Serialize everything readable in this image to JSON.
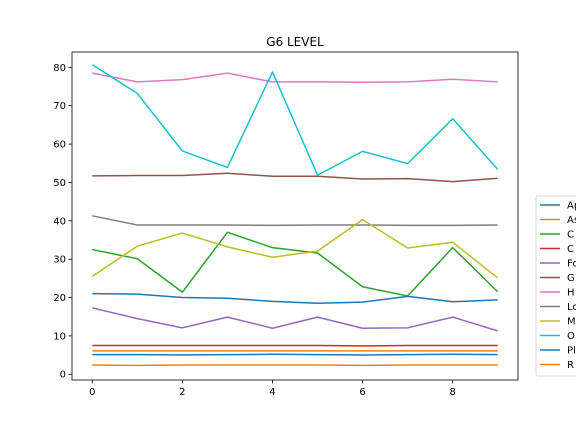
{
  "chart_data": {
    "type": "line",
    "title": "G6 LEVEL",
    "xlabel": "",
    "ylabel": "",
    "xlim": [
      -0.45,
      9.45
    ],
    "ylim": [
      -1.5,
      84
    ],
    "xticks": [
      0,
      2,
      4,
      6,
      8
    ],
    "yticks": [
      0,
      10,
      20,
      30,
      40,
      50,
      60,
      70,
      80
    ],
    "grid": false,
    "legend_position": "right",
    "x": [
      0,
      1,
      2,
      3,
      4,
      5,
      6,
      7,
      8,
      9
    ],
    "series": [
      {
        "name": "Ap",
        "color": "#1f77b4",
        "values": [
          21.0,
          20.9,
          20.0,
          19.8,
          19.0,
          18.5,
          18.8,
          20.3,
          18.9,
          19.4
        ]
      },
      {
        "name": "As",
        "color": "#ff7f0e",
        "values": [
          2.4,
          2.3,
          2.4,
          2.4,
          2.4,
          2.4,
          2.3,
          2.4,
          2.4,
          2.4
        ]
      },
      {
        "name": "C",
        "color": "#2ca02c",
        "values": [
          32.5,
          30.1,
          21.4,
          37.0,
          33.0,
          31.6,
          22.8,
          20.4,
          33.0,
          21.5
        ]
      },
      {
        "name": "C",
        "color": "#d62728",
        "values": [
          7.5,
          7.5,
          7.5,
          7.5,
          7.5,
          7.5,
          7.4,
          7.5,
          7.5,
          7.5
        ]
      },
      {
        "name": "Fo",
        "color": "#9467bd",
        "values": [
          17.3,
          14.5,
          12.1,
          14.9,
          12.0,
          14.9,
          12.0,
          12.1,
          14.9,
          11.3
        ]
      },
      {
        "name": "G",
        "color": "#8c564b",
        "values": [
          51.7,
          51.8,
          51.8,
          52.4,
          51.6,
          51.6,
          50.9,
          51.0,
          50.2,
          51.1
        ]
      },
      {
        "name": "H",
        "color": "#e377c2",
        "values": [
          78.5,
          76.2,
          76.8,
          78.5,
          76.2,
          76.2,
          76.1,
          76.2,
          76.9,
          76.2
        ]
      },
      {
        "name": "Lo",
        "color": "#7f7f7f",
        "values": [
          41.3,
          38.9,
          38.9,
          38.9,
          38.8,
          38.9,
          38.9,
          38.8,
          38.8,
          38.9
        ]
      },
      {
        "name": "M",
        "color": "#bcbd22",
        "values": [
          25.5,
          33.4,
          36.8,
          33.2,
          30.5,
          32.1,
          40.3,
          32.9,
          34.4,
          25.1
        ]
      },
      {
        "name": "O",
        "color": "#17becf",
        "values": [
          80.7,
          73.2,
          58.2,
          53.9,
          78.8,
          51.9,
          58.1,
          54.9,
          66.6,
          53.4
        ]
      },
      {
        "name": "Pl",
        "color": "#1f77b4",
        "values": [
          5.1,
          5.1,
          5.0,
          5.1,
          5.2,
          5.1,
          5.0,
          5.1,
          5.2,
          5.1
        ]
      },
      {
        "name": "R",
        "color": "#ff7f0e",
        "values": [
          6.1,
          6.1,
          6.1,
          6.1,
          6.1,
          6.1,
          6.1,
          6.1,
          6.1,
          6.1
        ]
      }
    ]
  }
}
